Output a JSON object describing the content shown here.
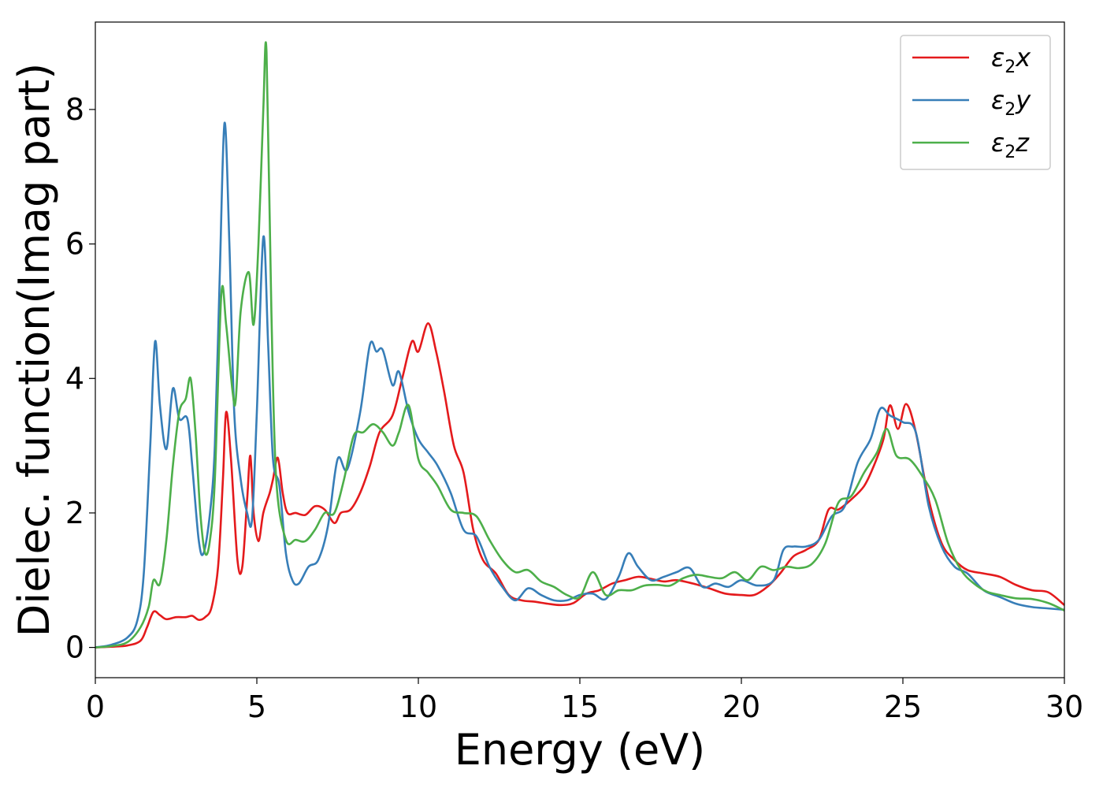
{
  "chart_data": {
    "type": "line",
    "xlabel": "Energy (eV)",
    "ylabel": "Dielec. function(Imag part)",
    "xlim": [
      0,
      30
    ],
    "ylim": [
      -0.45,
      9.3
    ],
    "xticks": [
      0,
      5,
      10,
      15,
      20,
      25,
      30
    ],
    "yticks": [
      0,
      2,
      4,
      6,
      8
    ],
    "grid": false,
    "legend_position": "top-right",
    "series": [
      {
        "name": "ε₂x",
        "label_main": "ε",
        "label_sub": "2",
        "label_tail": "x",
        "color": "#e41a1c",
        "points": [
          [
            0,
            0
          ],
          [
            0.5,
            0.01
          ],
          [
            1,
            0.03
          ],
          [
            1.4,
            0.1
          ],
          [
            1.6,
            0.3
          ],
          [
            1.8,
            0.53
          ],
          [
            2.0,
            0.48
          ],
          [
            2.2,
            0.42
          ],
          [
            2.5,
            0.45
          ],
          [
            2.8,
            0.45
          ],
          [
            3.0,
            0.47
          ],
          [
            3.2,
            0.41
          ],
          [
            3.4,
            0.45
          ],
          [
            3.6,
            0.6
          ],
          [
            3.8,
            1.2
          ],
          [
            3.95,
            2.5
          ],
          [
            4.05,
            3.5
          ],
          [
            4.2,
            2.8
          ],
          [
            4.4,
            1.3
          ],
          [
            4.55,
            1.2
          ],
          [
            4.7,
            2.2
          ],
          [
            4.8,
            2.85
          ],
          [
            4.9,
            2.0
          ],
          [
            5.05,
            1.58
          ],
          [
            5.2,
            2.0
          ],
          [
            5.4,
            2.3
          ],
          [
            5.5,
            2.5
          ],
          [
            5.65,
            2.82
          ],
          [
            5.8,
            2.3
          ],
          [
            5.95,
            2.0
          ],
          [
            6.2,
            2.0
          ],
          [
            6.5,
            1.97
          ],
          [
            6.8,
            2.1
          ],
          [
            7.1,
            2.05
          ],
          [
            7.4,
            1.85
          ],
          [
            7.6,
            2.0
          ],
          [
            7.9,
            2.05
          ],
          [
            8.2,
            2.3
          ],
          [
            8.5,
            2.7
          ],
          [
            8.8,
            3.2
          ],
          [
            9.2,
            3.45
          ],
          [
            9.5,
            4.0
          ],
          [
            9.8,
            4.55
          ],
          [
            10.0,
            4.4
          ],
          [
            10.3,
            4.82
          ],
          [
            10.55,
            4.4
          ],
          [
            10.8,
            3.8
          ],
          [
            11.1,
            3.0
          ],
          [
            11.4,
            2.6
          ],
          [
            11.7,
            1.75
          ],
          [
            12.0,
            1.3
          ],
          [
            12.4,
            1.1
          ],
          [
            12.8,
            0.78
          ],
          [
            13.2,
            0.7
          ],
          [
            13.6,
            0.68
          ],
          [
            14.0,
            0.65
          ],
          [
            14.4,
            0.63
          ],
          [
            14.8,
            0.66
          ],
          [
            15.2,
            0.8
          ],
          [
            15.6,
            0.85
          ],
          [
            16.0,
            0.95
          ],
          [
            16.4,
            1.0
          ],
          [
            16.8,
            1.05
          ],
          [
            17.2,
            1.02
          ],
          [
            17.6,
            0.98
          ],
          [
            18.0,
            1.0
          ],
          [
            18.5,
            0.95
          ],
          [
            19.0,
            0.88
          ],
          [
            19.5,
            0.8
          ],
          [
            20.0,
            0.78
          ],
          [
            20.4,
            0.78
          ],
          [
            20.8,
            0.9
          ],
          [
            21.2,
            1.1
          ],
          [
            21.6,
            1.35
          ],
          [
            22.0,
            1.45
          ],
          [
            22.4,
            1.6
          ],
          [
            22.7,
            2.05
          ],
          [
            23.0,
            2.05
          ],
          [
            23.4,
            2.2
          ],
          [
            23.8,
            2.4
          ],
          [
            24.1,
            2.7
          ],
          [
            24.4,
            3.1
          ],
          [
            24.6,
            3.6
          ],
          [
            24.85,
            3.25
          ],
          [
            25.1,
            3.62
          ],
          [
            25.4,
            3.2
          ],
          [
            25.8,
            2.2
          ],
          [
            26.2,
            1.55
          ],
          [
            26.6,
            1.3
          ],
          [
            27.0,
            1.15
          ],
          [
            27.5,
            1.1
          ],
          [
            28.0,
            1.05
          ],
          [
            28.5,
            0.93
          ],
          [
            29.0,
            0.85
          ],
          [
            29.5,
            0.82
          ],
          [
            30.0,
            0.63
          ]
        ]
      },
      {
        "name": "ε₂y",
        "label_main": "ε",
        "label_sub": "2",
        "label_tail": "y",
        "color": "#377eb8",
        "points": [
          [
            0,
            0
          ],
          [
            0.5,
            0.04
          ],
          [
            1,
            0.15
          ],
          [
            1.3,
            0.4
          ],
          [
            1.5,
            1.1
          ],
          [
            1.7,
            3.0
          ],
          [
            1.85,
            4.55
          ],
          [
            2.0,
            3.6
          ],
          [
            2.2,
            2.95
          ],
          [
            2.4,
            3.85
          ],
          [
            2.6,
            3.4
          ],
          [
            2.85,
            3.4
          ],
          [
            3.0,
            2.7
          ],
          [
            3.2,
            1.6
          ],
          [
            3.35,
            1.4
          ],
          [
            3.55,
            2.0
          ],
          [
            3.7,
            3.0
          ],
          [
            3.85,
            5.5
          ],
          [
            4.0,
            7.8
          ],
          [
            4.15,
            6.0
          ],
          [
            4.3,
            3.5
          ],
          [
            4.5,
            2.5
          ],
          [
            4.7,
            2.0
          ],
          [
            4.85,
            1.9
          ],
          [
            5.0,
            3.5
          ],
          [
            5.2,
            6.1
          ],
          [
            5.35,
            4.5
          ],
          [
            5.5,
            2.8
          ],
          [
            5.7,
            2.4
          ],
          [
            5.9,
            1.4
          ],
          [
            6.1,
            1.0
          ],
          [
            6.3,
            0.95
          ],
          [
            6.6,
            1.2
          ],
          [
            6.9,
            1.3
          ],
          [
            7.2,
            1.8
          ],
          [
            7.5,
            2.8
          ],
          [
            7.8,
            2.65
          ],
          [
            8.2,
            3.5
          ],
          [
            8.5,
            4.5
          ],
          [
            8.7,
            4.4
          ],
          [
            8.9,
            4.42
          ],
          [
            9.2,
            3.9
          ],
          [
            9.4,
            4.1
          ],
          [
            9.7,
            3.5
          ],
          [
            10.0,
            3.1
          ],
          [
            10.3,
            2.9
          ],
          [
            10.6,
            2.7
          ],
          [
            11.0,
            2.3
          ],
          [
            11.4,
            1.75
          ],
          [
            11.8,
            1.65
          ],
          [
            12.2,
            1.2
          ],
          [
            12.6,
            0.9
          ],
          [
            13.0,
            0.7
          ],
          [
            13.4,
            0.88
          ],
          [
            13.8,
            0.78
          ],
          [
            14.2,
            0.7
          ],
          [
            14.6,
            0.7
          ],
          [
            15.0,
            0.78
          ],
          [
            15.4,
            0.8
          ],
          [
            15.8,
            0.72
          ],
          [
            16.2,
            1.05
          ],
          [
            16.5,
            1.4
          ],
          [
            16.8,
            1.2
          ],
          [
            17.2,
            1.0
          ],
          [
            17.6,
            1.05
          ],
          [
            18.0,
            1.12
          ],
          [
            18.4,
            1.18
          ],
          [
            18.8,
            0.9
          ],
          [
            19.2,
            0.95
          ],
          [
            19.6,
            0.9
          ],
          [
            20.0,
            1.0
          ],
          [
            20.5,
            0.92
          ],
          [
            21.0,
            1.0
          ],
          [
            21.3,
            1.45
          ],
          [
            21.6,
            1.5
          ],
          [
            22.0,
            1.5
          ],
          [
            22.4,
            1.6
          ],
          [
            22.8,
            1.95
          ],
          [
            23.2,
            2.1
          ],
          [
            23.6,
            2.75
          ],
          [
            24.0,
            3.1
          ],
          [
            24.3,
            3.55
          ],
          [
            24.6,
            3.45
          ],
          [
            25.0,
            3.35
          ],
          [
            25.4,
            3.2
          ],
          [
            25.8,
            2.1
          ],
          [
            26.2,
            1.5
          ],
          [
            26.6,
            1.2
          ],
          [
            27.0,
            1.1
          ],
          [
            27.5,
            0.85
          ],
          [
            28.0,
            0.75
          ],
          [
            28.5,
            0.65
          ],
          [
            29.0,
            0.6
          ],
          [
            29.5,
            0.58
          ],
          [
            30.0,
            0.56
          ]
        ]
      },
      {
        "name": "ε₂z",
        "label_main": "ε",
        "label_sub": "2",
        "label_tail": "z",
        "color": "#4daf4a",
        "points": [
          [
            0,
            0
          ],
          [
            0.5,
            0.02
          ],
          [
            1,
            0.08
          ],
          [
            1.4,
            0.3
          ],
          [
            1.65,
            0.6
          ],
          [
            1.8,
            1.0
          ],
          [
            2.0,
            0.95
          ],
          [
            2.2,
            1.6
          ],
          [
            2.4,
            2.7
          ],
          [
            2.6,
            3.5
          ],
          [
            2.8,
            3.7
          ],
          [
            2.95,
            4.0
          ],
          [
            3.1,
            3.2
          ],
          [
            3.25,
            2.0
          ],
          [
            3.4,
            1.4
          ],
          [
            3.55,
            1.6
          ],
          [
            3.7,
            2.5
          ],
          [
            3.9,
            5.25
          ],
          [
            4.05,
            4.8
          ],
          [
            4.25,
            3.8
          ],
          [
            4.35,
            3.7
          ],
          [
            4.5,
            5.0
          ],
          [
            4.75,
            5.58
          ],
          [
            4.9,
            4.8
          ],
          [
            5.05,
            6.0
          ],
          [
            5.2,
            8.0
          ],
          [
            5.3,
            8.85
          ],
          [
            5.45,
            5.0
          ],
          [
            5.6,
            2.5
          ],
          [
            5.9,
            1.6
          ],
          [
            6.2,
            1.6
          ],
          [
            6.5,
            1.58
          ],
          [
            6.8,
            1.75
          ],
          [
            7.1,
            2.0
          ],
          [
            7.4,
            2.0
          ],
          [
            7.7,
            2.5
          ],
          [
            8.0,
            3.15
          ],
          [
            8.3,
            3.2
          ],
          [
            8.6,
            3.32
          ],
          [
            8.9,
            3.2
          ],
          [
            9.2,
            3.0
          ],
          [
            9.4,
            3.2
          ],
          [
            9.7,
            3.6
          ],
          [
            10.0,
            2.8
          ],
          [
            10.3,
            2.6
          ],
          [
            10.6,
            2.4
          ],
          [
            11.0,
            2.05
          ],
          [
            11.4,
            2.0
          ],
          [
            11.8,
            1.95
          ],
          [
            12.2,
            1.6
          ],
          [
            12.6,
            1.3
          ],
          [
            13.0,
            1.12
          ],
          [
            13.4,
            1.15
          ],
          [
            13.8,
            0.98
          ],
          [
            14.2,
            0.9
          ],
          [
            14.6,
            0.78
          ],
          [
            15.0,
            0.75
          ],
          [
            15.4,
            1.12
          ],
          [
            15.8,
            0.78
          ],
          [
            16.2,
            0.85
          ],
          [
            16.6,
            0.85
          ],
          [
            17.0,
            0.92
          ],
          [
            17.4,
            0.93
          ],
          [
            17.8,
            0.92
          ],
          [
            18.2,
            1.03
          ],
          [
            18.6,
            1.08
          ],
          [
            19.0,
            1.05
          ],
          [
            19.4,
            1.03
          ],
          [
            19.8,
            1.12
          ],
          [
            20.2,
            1.0
          ],
          [
            20.6,
            1.2
          ],
          [
            21.0,
            1.15
          ],
          [
            21.4,
            1.2
          ],
          [
            21.8,
            1.18
          ],
          [
            22.2,
            1.25
          ],
          [
            22.6,
            1.55
          ],
          [
            23.0,
            2.15
          ],
          [
            23.4,
            2.25
          ],
          [
            23.8,
            2.6
          ],
          [
            24.2,
            2.9
          ],
          [
            24.5,
            3.25
          ],
          [
            24.8,
            2.85
          ],
          [
            25.2,
            2.8
          ],
          [
            25.6,
            2.55
          ],
          [
            26.0,
            2.2
          ],
          [
            26.4,
            1.55
          ],
          [
            26.8,
            1.15
          ],
          [
            27.2,
            0.95
          ],
          [
            27.6,
            0.83
          ],
          [
            28.0,
            0.78
          ],
          [
            28.5,
            0.73
          ],
          [
            29.0,
            0.72
          ],
          [
            29.5,
            0.66
          ],
          [
            30.0,
            0.55
          ]
        ]
      }
    ]
  }
}
